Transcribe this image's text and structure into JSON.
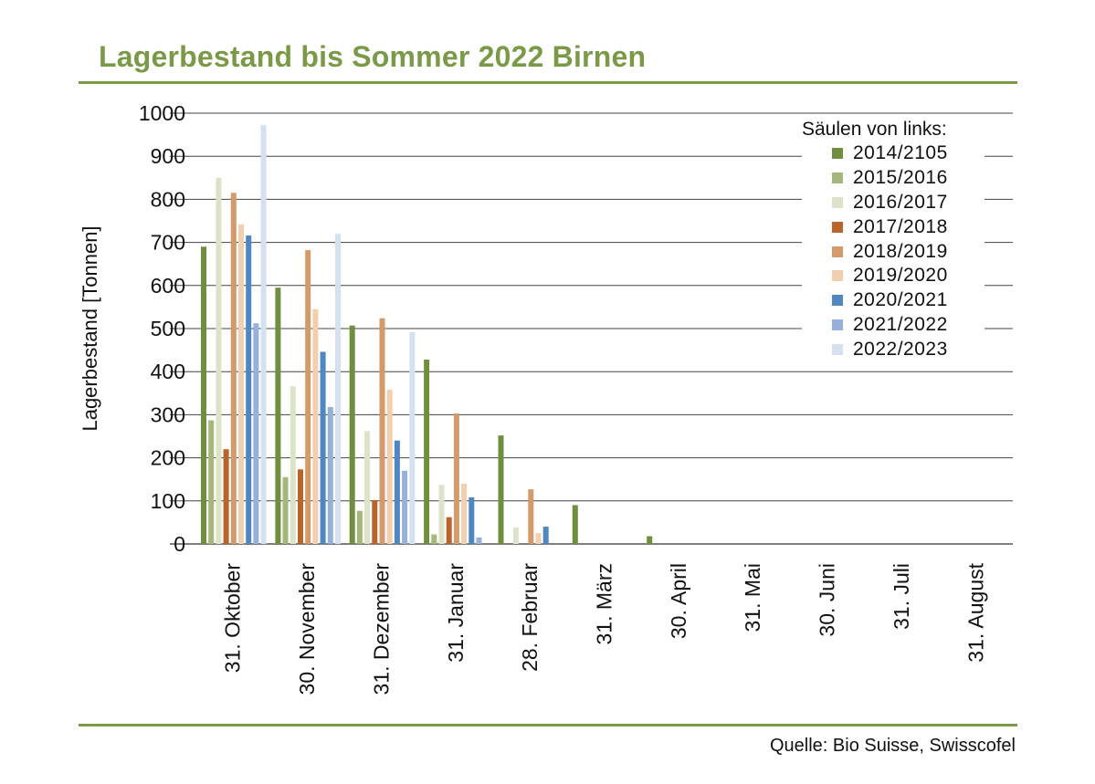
{
  "header": {
    "title": "Lagerbestand bis Sommer 2022 Birnen"
  },
  "footer": {
    "source": "Quelle: Bio Suisse, Swisscofel"
  },
  "legend": {
    "title": "Säulen von links:"
  },
  "colors": {
    "accent": "#7a9a48",
    "gridline": "#444444"
  },
  "chart_data": {
    "type": "bar",
    "title": "Lagerbestand bis Sommer 2022 Birnen",
    "xlabel": "",
    "ylabel": "Lagerbestand [Tonnen]",
    "ylim": [
      0,
      1000
    ],
    "yticks": [
      0,
      100,
      200,
      300,
      400,
      500,
      600,
      700,
      800,
      900,
      1000
    ],
    "grid": true,
    "legend_position": "top-right",
    "categories": [
      "31. Oktober",
      "30. November",
      "31. Dezember",
      "31. Januar",
      "28. Februar",
      "31. März",
      "30. April",
      "31. Mai",
      "30. Juni",
      "31. Juli",
      "31. August"
    ],
    "series": [
      {
        "name": "2014/2105",
        "color": "#6f8f3e",
        "values": [
          690,
          595,
          507,
          428,
          252,
          90,
          18,
          null,
          null,
          null,
          null
        ]
      },
      {
        "name": "2015/2016",
        "color": "#a5b87c",
        "values": [
          287,
          155,
          77,
          22,
          0,
          null,
          null,
          null,
          null,
          null,
          null
        ]
      },
      {
        "name": "2016/2017",
        "color": "#dde3c8",
        "values": [
          850,
          366,
          262,
          137,
          38,
          null,
          null,
          null,
          null,
          null,
          null
        ]
      },
      {
        "name": "2017/2018",
        "color": "#b8642a",
        "values": [
          220,
          173,
          102,
          62,
          null,
          null,
          null,
          null,
          null,
          null,
          null
        ]
      },
      {
        "name": "2018/2019",
        "color": "#d49a6a",
        "values": [
          815,
          682,
          524,
          303,
          127,
          null,
          null,
          null,
          null,
          null,
          null
        ]
      },
      {
        "name": "2019/2020",
        "color": "#f2cfae",
        "values": [
          742,
          545,
          358,
          140,
          25,
          null,
          null,
          null,
          null,
          null,
          null
        ]
      },
      {
        "name": "2020/2021",
        "color": "#4f87c2",
        "values": [
          716,
          446,
          240,
          108,
          40,
          null,
          null,
          null,
          null,
          null,
          null
        ]
      },
      {
        "name": "2021/2022",
        "color": "#97b1da",
        "values": [
          512,
          318,
          170,
          15,
          null,
          null,
          null,
          null,
          null,
          null,
          null
        ]
      },
      {
        "name": "2022/2023",
        "color": "#d5e0f1",
        "values": [
          972,
          720,
          492,
          null,
          null,
          null,
          null,
          null,
          null,
          null,
          null
        ]
      }
    ]
  }
}
